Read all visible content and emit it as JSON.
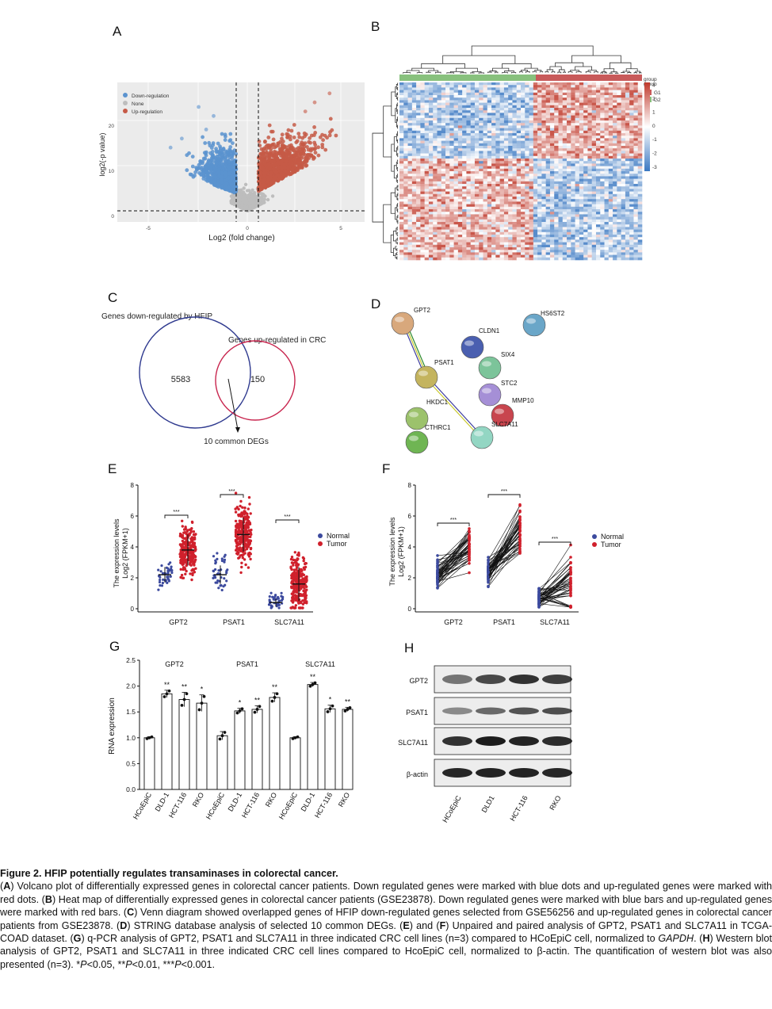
{
  "panel_labels": {
    "A": "A",
    "B": "B",
    "C": "C",
    "D": "D",
    "E": "E",
    "F": "F",
    "G": "G",
    "H": "H"
  },
  "panelA": {
    "legend": [
      "Down-regulation",
      "None",
      "Up-regulation"
    ],
    "xlabel": "Log2 (fold change)",
    "ylabel": "log2(-p value)",
    "xticks": [
      "-5",
      "0",
      "5"
    ],
    "yticks": [
      "0",
      "10",
      "20"
    ],
    "colors": {
      "down": "#5b93cf",
      "none": "#bdbdbd",
      "up": "#c65a47"
    }
  },
  "panelB": {
    "legend_title": "group",
    "groups": [
      "G1",
      "G2"
    ],
    "scale_ticks": [
      "3",
      "2",
      "1",
      "0",
      "-1",
      "-2",
      "-3"
    ],
    "colors": {
      "g1": "#c85a5a",
      "g2": "#88c17d",
      "high": "#c0392b",
      "low": "#3a78c2"
    }
  },
  "panelC": {
    "label_left": "Genes down-regulated by HFIP",
    "label_right": "Genes up-regulated in CRC",
    "count_left": "5583",
    "count_right": "150",
    "common_label": "10 common DEGs"
  },
  "panelD": {
    "nodes": [
      {
        "name": "GPT2",
        "color": "#d8a87c"
      },
      {
        "name": "CLDN1",
        "color": "#4a5fb0"
      },
      {
        "name": "HS6ST2",
        "color": "#6aa6c8"
      },
      {
        "name": "SIX4",
        "color": "#7cc49a"
      },
      {
        "name": "PSAT1",
        "color": "#c4b45e"
      },
      {
        "name": "STC2",
        "color": "#a58fd6"
      },
      {
        "name": "HKDC1",
        "color": "#9cc26c"
      },
      {
        "name": "MMP10",
        "color": "#c8454e"
      },
      {
        "name": "CTHRC1",
        "color": "#6fb553"
      },
      {
        "name": "SLC7A11",
        "color": "#93d6c3"
      }
    ]
  },
  "panelE": {
    "ylabel1": "The expression levels",
    "ylabel2": "Log2 (FPKM+1)",
    "categories": [
      "GPT2",
      "PSAT1",
      "SLC7A11"
    ],
    "yticks": [
      "0",
      "2",
      "4",
      "6",
      "8"
    ],
    "legend": [
      "Normal",
      "Tumor"
    ],
    "sig": [
      "***",
      "***",
      "***"
    ],
    "colors": {
      "normal": "#3c4a9e",
      "tumor": "#d0202c"
    }
  },
  "panelF": {
    "ylabel1": "The expression levels",
    "ylabel2": "Log2 (FPKM+1)",
    "categories": [
      "GPT2",
      "PSAT1",
      "SLC7A11"
    ],
    "yticks": [
      "0",
      "2",
      "4",
      "6",
      "8"
    ],
    "legend": [
      "Normal",
      "Tumor"
    ],
    "sig": [
      "***",
      "***",
      "***"
    ]
  },
  "panelG": {
    "ylabel": "RNA expression",
    "yticks": [
      "0.0",
      "0.5",
      "1.0",
      "1.5",
      "2.0",
      "2.5"
    ],
    "genes": [
      "GPT2",
      "PSAT1",
      "SLC7A11"
    ],
    "cell_lines": [
      "HCoEpiC",
      "DLD-1",
      "HCT-116",
      "RKO"
    ],
    "sig": [
      "",
      "**",
      "**",
      "*",
      "",
      "*",
      "**",
      "**",
      "",
      "**",
      "*",
      "**"
    ]
  },
  "panelH": {
    "rows": [
      "GPT2",
      "PSAT1",
      "SLC7A11",
      "β-actin"
    ],
    "cell_lines": [
      "HCoEpiC",
      "DLD1",
      "HCT-116",
      "RKO"
    ]
  },
  "chart_data": [
    {
      "type": "bar",
      "panel": "G",
      "ylabel": "RNA expression",
      "ylim": [
        0,
        2.5
      ],
      "categories": [
        "GPT2 HCoEpiC",
        "GPT2 DLD-1",
        "GPT2 HCT-116",
        "GPT2 RKO",
        "PSAT1 HCoEpiC",
        "PSAT1 DLD-1",
        "PSAT1 HCT-116",
        "PSAT1 RKO",
        "SLC7A11 HCoEpiC",
        "SLC7A11 DLD-1",
        "SLC7A11 HCT-116",
        "SLC7A11 RKO"
      ],
      "values": [
        1.0,
        1.85,
        1.74,
        1.67,
        1.04,
        1.52,
        1.55,
        1.78,
        1.0,
        2.03,
        1.56,
        1.55
      ],
      "errors": [
        0.02,
        0.07,
        0.14,
        0.16,
        0.08,
        0.05,
        0.07,
        0.09,
        0.02,
        0.04,
        0.07,
        0.04
      ]
    },
    {
      "type": "scatter",
      "panel": "E",
      "categories": [
        "GPT2",
        "PSAT1",
        "SLC7A11"
      ],
      "ylim": [
        0,
        8
      ],
      "series": [
        {
          "name": "Normal",
          "median": [
            2.2,
            2.2,
            0.4
          ],
          "spread": [
            0.5,
            0.6,
            0.25
          ]
        },
        {
          "name": "Tumor",
          "median": [
            3.8,
            4.8,
            1.6
          ],
          "spread": [
            1.0,
            1.1,
            1.1
          ]
        }
      ]
    },
    {
      "type": "line",
      "panel": "F",
      "categories": [
        "GPT2",
        "PSAT1",
        "SLC7A11"
      ],
      "ylim": [
        0,
        8
      ],
      "series": [
        {
          "name": "Normal",
          "median": [
            2.2,
            2.4,
            0.6
          ]
        },
        {
          "name": "Tumor",
          "median": [
            3.9,
            4.9,
            1.7
          ]
        }
      ]
    }
  ],
  "caption": {
    "title": "Figure 2. HFIP potentially regulates transaminases in colorectal cancer.",
    "segments": [
      {
        "t": "("
      },
      {
        "t": "A",
        "b": true
      },
      {
        "t": ") Volcano plot of differentially expressed genes in colorectal cancer patients. Down regulated genes were marked with blue dots and up-regulated genes were marked with red dots. ("
      },
      {
        "t": "B",
        "b": true
      },
      {
        "t": ") Heat map of differentially expressed genes in colorectal cancer patients (GSE23878). Down regulated genes were marked with blue bars and up-regulated genes were marked with red bars. ("
      },
      {
        "t": "C",
        "b": true
      },
      {
        "t": ") Venn diagram showed overlapped genes of HFIP down-regulated genes selected from GSE56256 and up-regulated genes in colorectal cancer patients from GSE23878. ("
      },
      {
        "t": "D",
        "b": true
      },
      {
        "t": ") STRING database analysis of selected 10 common DEGs. ("
      },
      {
        "t": "E",
        "b": true
      },
      {
        "t": ") and ("
      },
      {
        "t": "F",
        "b": true
      },
      {
        "t": ") Unpaired and paired analysis of GPT2, PSAT1 and SLC7A11 in TCGA-COAD dataset. ("
      },
      {
        "t": "G",
        "b": true
      },
      {
        "t": ") q-PCR analysis of GPT2, PSAT1 and SLC7A11 in three indicated CRC cell lines (n=3) compared to HCoEpiC cell, normalized to "
      },
      {
        "t": "GAPDH",
        "i": true
      },
      {
        "t": ". ("
      },
      {
        "t": "H",
        "b": true
      },
      {
        "t": ") Western blot analysis of GPT2, PSAT1 and SLC7A11 in three indicated CRC cell lines compared to HcoEpiC cell, normalized to β-actin. The quantification of western blot was also presented (n=3). *"
      },
      {
        "t": "P",
        "i": true
      },
      {
        "t": "<0.05, **"
      },
      {
        "t": "P",
        "i": true
      },
      {
        "t": "<0.01, ***"
      },
      {
        "t": "P",
        "i": true
      },
      {
        "t": "<0.001."
      }
    ]
  }
}
